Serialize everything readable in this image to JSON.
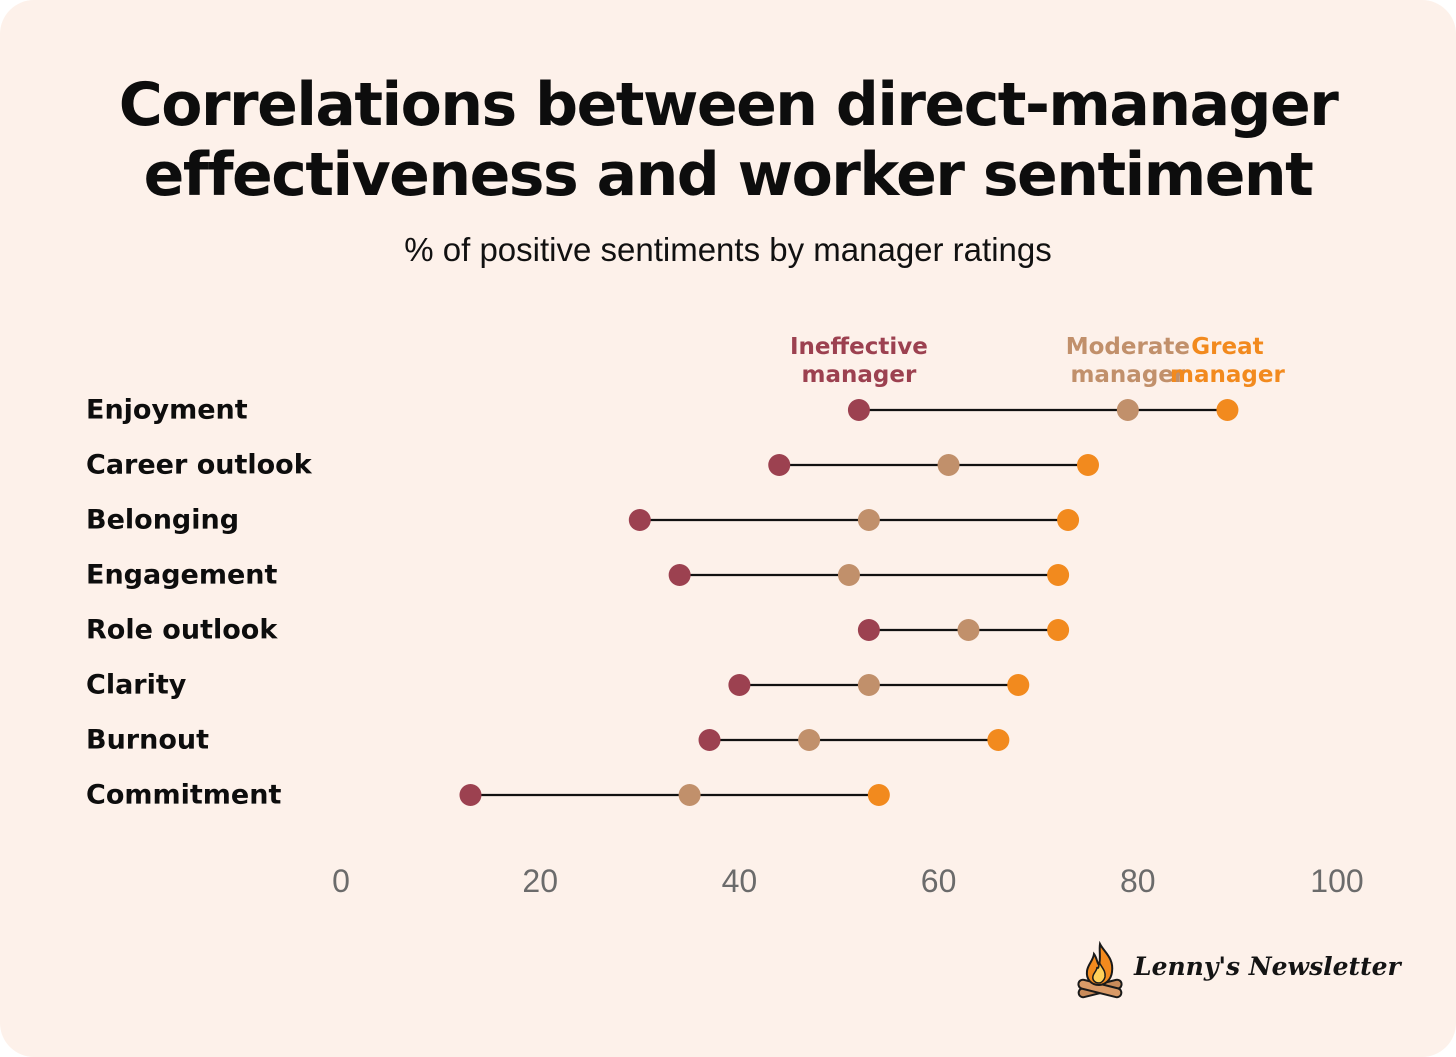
{
  "chart_data": {
    "type": "dot-range",
    "title_lines": [
      "Correlations between direct-manager",
      "effectiveness and worker sentiment"
    ],
    "subtitle": "% of positive sentiments by manager ratings",
    "categories": [
      "Enjoyment",
      "Career outlook",
      "Belonging",
      "Engagement",
      "Role outlook",
      "Clarity",
      "Burnout",
      "Commitment"
    ],
    "series": [
      {
        "name": "Ineffective manager",
        "label_lines": [
          "Ineffective",
          "manager"
        ],
        "color": "#9c4150",
        "values": [
          52,
          44,
          30,
          34,
          53,
          40,
          37,
          13
        ]
      },
      {
        "name": "Moderate manager",
        "label_lines": [
          "Moderate",
          "manager"
        ],
        "color": "#c1906b",
        "values": [
          79,
          61,
          53,
          51,
          63,
          53,
          47,
          35
        ]
      },
      {
        "name": "Great manager",
        "label_lines": [
          "Great",
          "manager"
        ],
        "color": "#f28a1e",
        "values": [
          89,
          75,
          73,
          72,
          72,
          68,
          66,
          54
        ]
      }
    ],
    "xlim": [
      0,
      100
    ],
    "xticks": [
      0,
      20,
      40,
      60,
      80,
      100
    ],
    "grid": false,
    "legend_position": "top, above the first row"
  },
  "brand": {
    "name": "Lenny's Newsletter",
    "icon": "campfire-icon"
  }
}
